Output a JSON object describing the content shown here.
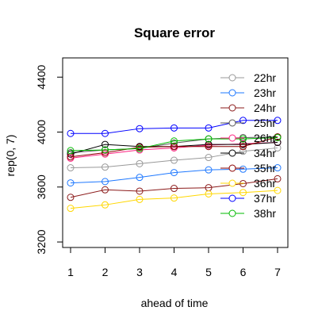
{
  "chart_data": {
    "type": "line",
    "title": "Square error",
    "xlabel": "ahead of time",
    "ylabel": "rep(0, 7)",
    "x": [
      1,
      2,
      3,
      4,
      5,
      6,
      7
    ],
    "x_ticks": [
      "1",
      "2",
      "3",
      "4",
      "5",
      "6",
      "7"
    ],
    "y_ticks": [
      "3200",
      "3600",
      "4000",
      "4400"
    ],
    "xlim": [
      1,
      7
    ],
    "ylim": [
      3160,
      4540
    ],
    "grid": false,
    "legend_position": "top-right",
    "markers": "open-circle",
    "series": [
      {
        "name": "22hr",
        "color": "#999999",
        "values": [
          3740,
          3745,
          3770,
          3795,
          3815,
          3860,
          3885
        ]
      },
      {
        "name": "23hr",
        "color": "#1e78ff",
        "values": [
          3630,
          3640,
          3670,
          3705,
          3725,
          3730,
          3740
        ]
      },
      {
        "name": "24hr",
        "color": "#8b1a1a",
        "values": [
          3525,
          3580,
          3570,
          3590,
          3595,
          3625,
          3660
        ]
      },
      {
        "name": "25hr",
        "color": "#555555",
        "values": [
          3850,
          3870,
          3880,
          3920,
          3950,
          3960,
          3965
        ]
      },
      {
        "name": "26hr",
        "color": "#ff2080",
        "values": [
          3810,
          3840,
          3870,
          3885,
          3905,
          3915,
          3925
        ]
      },
      {
        "name": "34hr",
        "color": "#000000",
        "values": [
          3840,
          3910,
          3895,
          3895,
          3910,
          3910,
          3925
        ]
      },
      {
        "name": "35hr",
        "color": "#8b0000",
        "values": [
          3820,
          3850,
          3890,
          3895,
          3895,
          3895,
          3965
        ]
      },
      {
        "name": "36hr",
        "color": "#ffd700",
        "values": [
          3445,
          3470,
          3510,
          3520,
          3550,
          3560,
          3575
        ]
      },
      {
        "name": "37hr",
        "color": "#0000ff",
        "values": [
          3990,
          3990,
          4025,
          4030,
          4030,
          4085,
          4085
        ]
      },
      {
        "name": "38hr",
        "color": "#00bb00",
        "values": [
          3865,
          3870,
          3880,
          3935,
          3950,
          3950,
          3960
        ]
      }
    ]
  }
}
